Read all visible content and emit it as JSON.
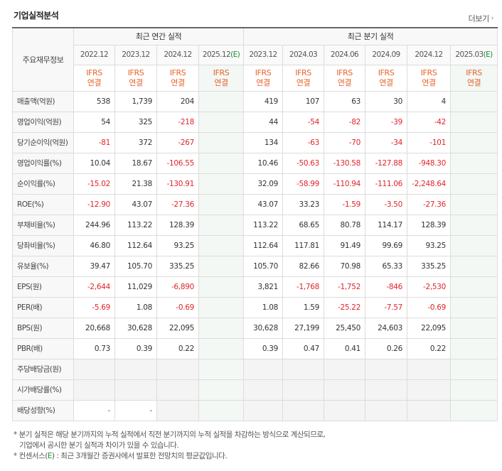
{
  "header": {
    "title": "기업실적분석",
    "more_label": "더보기"
  },
  "table": {
    "row_header": "주요재무정보",
    "annual_group": "최근 연간 실적",
    "quarter_group": "최근 분기 실적",
    "periods_annual": [
      "2022.12",
      "2023.12",
      "2024.12",
      "2025.12(E)"
    ],
    "periods_quarter": [
      "2023.12",
      "2024.03",
      "2024.06",
      "2024.09",
      "2024.12",
      "2025.03(E)"
    ],
    "ifrs_line1": "IFRS",
    "ifrs_line2": "연결",
    "rows": [
      {
        "label": "매출액(억원)",
        "annual": [
          "538",
          "1,739",
          "204",
          ""
        ],
        "quarter": [
          "419",
          "107",
          "63",
          "30",
          "4",
          ""
        ]
      },
      {
        "label": "영업이익(억원)",
        "annual": [
          "54",
          "325",
          "-218",
          ""
        ],
        "quarter": [
          "44",
          "-54",
          "-82",
          "-39",
          "-42",
          ""
        ]
      },
      {
        "label": "당기순이익(억원)",
        "annual": [
          "-81",
          "372",
          "-267",
          ""
        ],
        "quarter": [
          "134",
          "-63",
          "-70",
          "-34",
          "-101",
          ""
        ]
      },
      {
        "label": "영업이익률(%)",
        "annual": [
          "10.04",
          "18.67",
          "-106.55",
          ""
        ],
        "quarter": [
          "10.46",
          "-50.63",
          "-130.58",
          "-127.88",
          "-948.30",
          ""
        ]
      },
      {
        "label": "순이익률(%)",
        "annual": [
          "-15.02",
          "21.38",
          "-130.91",
          ""
        ],
        "quarter": [
          "32.09",
          "-58.99",
          "-110.94",
          "-111.06",
          "-2,248.64",
          ""
        ]
      },
      {
        "label": "ROE(%)",
        "annual": [
          "-12.90",
          "43.07",
          "-27.36",
          ""
        ],
        "quarter": [
          "43.07",
          "33.23",
          "-1.59",
          "-3.50",
          "-27.36",
          ""
        ]
      },
      {
        "label": "부채비율(%)",
        "annual": [
          "244.96",
          "113.22",
          "128.39",
          ""
        ],
        "quarter": [
          "113.22",
          "68.65",
          "80.78",
          "114.17",
          "128.39",
          ""
        ]
      },
      {
        "label": "당좌비율(%)",
        "annual": [
          "46.80",
          "112.64",
          "93.25",
          ""
        ],
        "quarter": [
          "112.64",
          "117.81",
          "91.49",
          "99.69",
          "93.25",
          ""
        ]
      },
      {
        "label": "유보율(%)",
        "annual": [
          "39.47",
          "105.70",
          "335.25",
          ""
        ],
        "quarter": [
          "105.70",
          "82.66",
          "70.98",
          "65.33",
          "335.25",
          ""
        ]
      },
      {
        "label": "EPS(원)",
        "annual": [
          "-2,644",
          "11,029",
          "-6,890",
          ""
        ],
        "quarter": [
          "3,821",
          "-1,768",
          "-1,752",
          "-846",
          "-2,530",
          ""
        ]
      },
      {
        "label": "PER(배)",
        "annual": [
          "-5.69",
          "1.08",
          "-0.69",
          ""
        ],
        "quarter": [
          "1.08",
          "1.59",
          "-25.22",
          "-7.57",
          "-0.69",
          ""
        ]
      },
      {
        "label": "BPS(원)",
        "annual": [
          "20,668",
          "30,628",
          "22,095",
          ""
        ],
        "quarter": [
          "30,628",
          "27,199",
          "25,450",
          "24,603",
          "22,095",
          ""
        ]
      },
      {
        "label": "PBR(배)",
        "annual": [
          "0.73",
          "0.39",
          "0.22",
          ""
        ],
        "quarter": [
          "0.39",
          "0.47",
          "0.41",
          "0.26",
          "0.22",
          ""
        ]
      },
      {
        "label": "주당배당금(원)",
        "annual": [
          "",
          "",
          "",
          ""
        ],
        "quarter": [
          "",
          "",
          "",
          "",
          "",
          ""
        ]
      },
      {
        "label": "시가배당률(%)",
        "annual": [
          "",
          "",
          "",
          ""
        ],
        "quarter": [
          "",
          "",
          "",
          "",
          "",
          ""
        ]
      },
      {
        "label": "배당성향(%)",
        "annual": [
          "-",
          "-",
          "",
          ""
        ],
        "quarter": [
          "",
          "",
          "",
          "",
          "",
          ""
        ]
      }
    ]
  },
  "notes": {
    "line1": "* 분기 실적은 해당 분기까지의 누적 실적에서 직전 분기까지의 누적 실적을 차감하는 방식으로 계산되므로,",
    "line2": "기업에서 공시한 분기 실적과 차이가 있을 수 있습니다.",
    "line3_prefix": "* 컨센서스(",
    "line3_e": "E",
    "line3_suffix": ") : 최근 3개월간 증권사에서 발표한 전망치의 평균값입니다."
  },
  "colors": {
    "ifrs_orange": "#e8632b",
    "negative_red": "#e0242b",
    "estimate_green": "#1a8a3a"
  }
}
